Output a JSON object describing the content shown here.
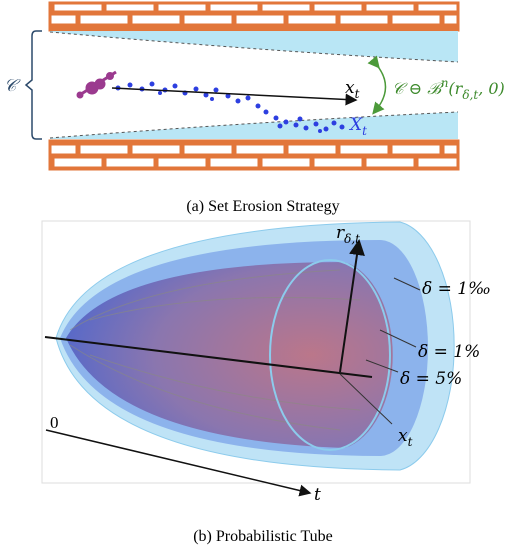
{
  "panel_a": {
    "caption": "(a) Set Erosion Strategy",
    "set_label": "𝒞",
    "nominal_label": {
      "base": "x",
      "sub": "t"
    },
    "random_label": {
      "base": "X",
      "sub": "t"
    },
    "erosion_label": {
      "part1": "𝒞 ⊖ ℬ",
      "sup": "n",
      "part2": "(r",
      "sub": "δ,t",
      "part3": ", 0)"
    }
  },
  "panel_b": {
    "caption": "(b) Probabilistic Tube",
    "radius_label": {
      "base": "r",
      "sub": "δ,t"
    },
    "level_labels": [
      "δ = 1‰",
      "δ = 1%",
      "δ = 5%"
    ],
    "state_label": {
      "base": "x",
      "sub": "t"
    },
    "origin_label": "0",
    "time_label": "t"
  }
}
